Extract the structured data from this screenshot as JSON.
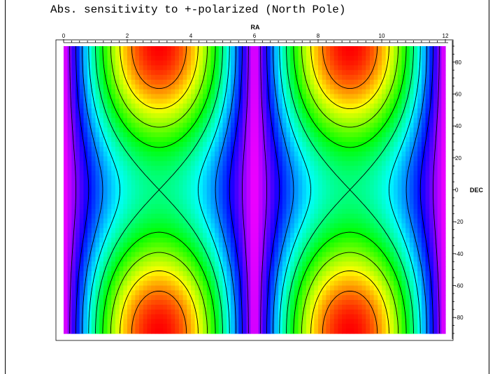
{
  "chart_data": {
    "type": "heatmap",
    "title": "Abs. sensitivity to +-polarized (North Pole)",
    "xlabel": "RA",
    "ylabel": "DEC",
    "xlim": [
      0,
      12
    ],
    "ylim": [
      -90,
      90
    ],
    "x_ticks": [
      "0",
      "2",
      "4",
      "6",
      "8",
      "10",
      "12"
    ],
    "y_ticks": [
      "-80",
      "-60",
      "-40",
      "-20",
      "0",
      "20",
      "40",
      "60",
      "80"
    ],
    "x_tick_values": [
      0,
      2,
      4,
      6,
      8,
      10,
      12
    ],
    "y_tick_values": [
      -80,
      -60,
      -40,
      -20,
      0,
      20,
      40,
      60,
      80
    ],
    "model": "value = |sin(pi*RA/6)| * (0.5 + 0.5*sin^2(DEC))",
    "contour_levels": [
      0.1,
      0.2,
      0.3,
      0.4,
      0.5,
      0.6,
      0.7,
      0.8,
      0.9
    ],
    "colormap": [
      "#ff00ff",
      "#0000ff",
      "#00ffff",
      "#00ff00",
      "#ffff00",
      "#ff0000"
    ],
    "grid": false
  }
}
